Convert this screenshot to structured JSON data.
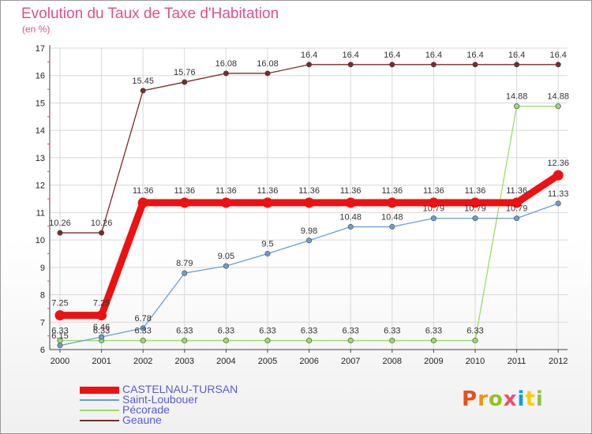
{
  "header": {
    "title": "Evolution du Taux de Taxe d'Habitation",
    "subtitle": "(en %)"
  },
  "brand": {
    "text": "Proxiti"
  },
  "chart_data": {
    "type": "line",
    "title": "Evolution du Taux de Taxe d'Habitation",
    "ylabel": "(en %)",
    "xlabel": "",
    "categories": [
      "2000",
      "2001",
      "2002",
      "2003",
      "2004",
      "2005",
      "2006",
      "2007",
      "2008",
      "2009",
      "2010",
      "2011",
      "2012"
    ],
    "ylim": [
      6,
      17
    ],
    "yticks": [
      6,
      7,
      8,
      9,
      10,
      11,
      12,
      13,
      14,
      15,
      16,
      17
    ],
    "grid": true,
    "legend_position": "bottom-left",
    "series": [
      {
        "name": "Geaune",
        "color": "#7a2a2a",
        "values": [
          10.26,
          10.26,
          15.45,
          15.76,
          16.08,
          16.08,
          16.4,
          16.4,
          16.4,
          16.4,
          16.4,
          16.4,
          16.4
        ],
        "labels": [
          "10.26",
          "10.26",
          "15.45",
          "15.76",
          "16.08",
          "16.08",
          "16.4",
          "16.4",
          "16.4",
          "16.4",
          "16.4",
          "16.4",
          "16.4"
        ]
      },
      {
        "name": "Pécorade",
        "color": "#99dd66",
        "values": [
          6.33,
          6.33,
          6.33,
          6.33,
          6.33,
          6.33,
          6.33,
          6.33,
          6.33,
          6.33,
          6.33,
          14.88,
          14.88
        ],
        "labels": [
          "6.33",
          "6.33",
          "6.33",
          "6.33",
          "6.33",
          "6.33",
          "6.33",
          "6.33",
          "6.33",
          "6.33",
          "6.33",
          "14.88",
          "14.88"
        ]
      },
      {
        "name": "Saint-Loubouer",
        "color": "#6a9ecf",
        "values": [
          6.15,
          6.46,
          6.78,
          8.79,
          9.05,
          9.5,
          9.98,
          10.48,
          10.48,
          10.79,
          10.79,
          10.79,
          11.33
        ],
        "labels": [
          "6.15",
          "6.46",
          "6.78",
          "8.79",
          "9.05",
          "9.5",
          "9.98",
          "10.48",
          "10.48",
          "10.79",
          "10.79",
          "10.79",
          "11.33"
        ]
      },
      {
        "name": "CASTELNAU-TURSAN",
        "color": "#ee1111",
        "values": [
          7.25,
          7.25,
          11.36,
          11.36,
          11.36,
          11.36,
          11.36,
          11.36,
          11.36,
          11.36,
          11.36,
          11.36,
          12.36
        ],
        "labels": [
          "7.25",
          "7.25",
          "11.36",
          "11.36",
          "11.36",
          "11.36",
          "11.36",
          "11.36",
          "11.36",
          "11.36",
          "11.36",
          "11.36",
          "12.36"
        ]
      }
    ],
    "legend": [
      "CASTELNAU-TURSAN",
      "Saint-Loubouer",
      "Pécorade",
      "Geaune"
    ]
  }
}
